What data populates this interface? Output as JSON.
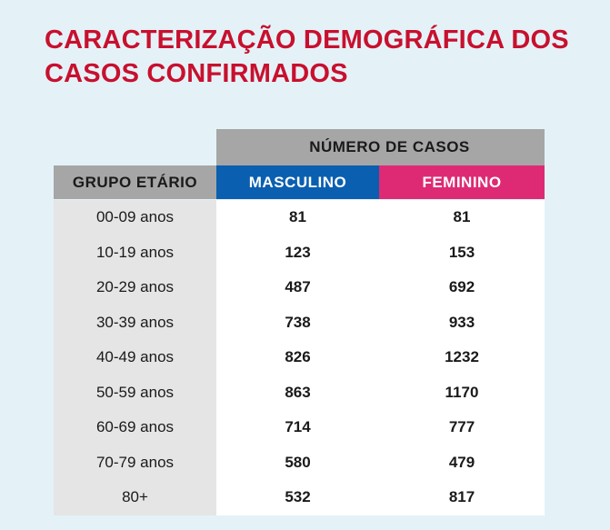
{
  "title": {
    "line1": "CARACTERIZAÇÃO DEMOGRÁFICA DOS",
    "line2": "CASOS CONFIRMADOS"
  },
  "table": {
    "group_header": "NÚMERO DE CASOS",
    "columns": [
      "GRUPO ETÁRIO",
      "MASCULINO",
      "FEMININO"
    ],
    "colors": {
      "masculino": "#0a5fb0",
      "feminino": "#de2a74",
      "header": "#a6a6a6",
      "title": "#c8102e"
    },
    "rows": [
      {
        "age": "00-09 anos",
        "masc": "81",
        "fem": "81"
      },
      {
        "age": "10-19 anos",
        "masc": "123",
        "fem": "153"
      },
      {
        "age": "20-29 anos",
        "masc": "487",
        "fem": "692"
      },
      {
        "age": "30-39 anos",
        "masc": "738",
        "fem": "933"
      },
      {
        "age": "40-49 anos",
        "masc": "826",
        "fem": "1232"
      },
      {
        "age": "50-59 anos",
        "masc": "863",
        "fem": "1170"
      },
      {
        "age": "60-69 anos",
        "masc": "714",
        "fem": "777"
      },
      {
        "age": "70-79 anos",
        "masc": "580",
        "fem": "479"
      },
      {
        "age": "80+",
        "masc": "532",
        "fem": "817"
      }
    ]
  }
}
